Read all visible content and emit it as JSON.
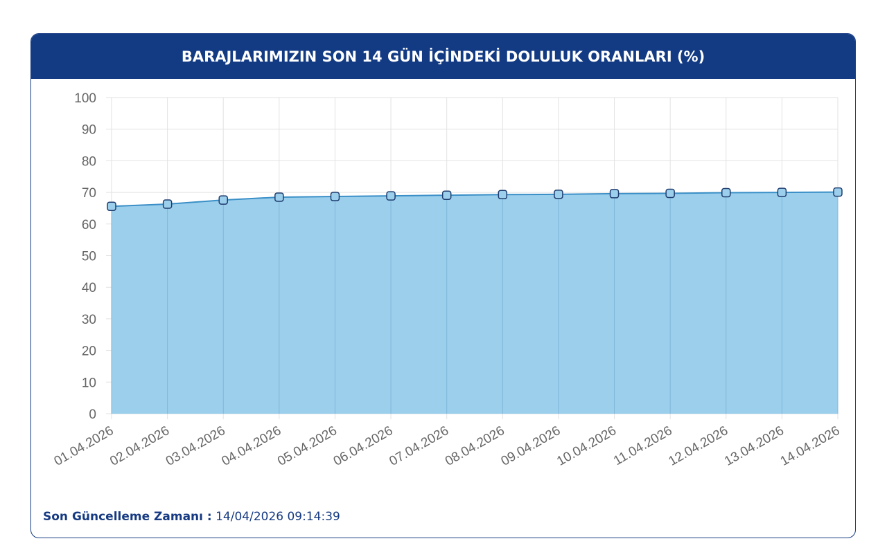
{
  "chart_data": {
    "type": "area",
    "title": "BARAJLARIMIZIN SON 14 GÜN İÇİNDEKİ DOLULUK ORANLARI (%)",
    "categories": [
      "01.04.2026",
      "02.04.2026",
      "03.04.2026",
      "04.04.2026",
      "05.04.2026",
      "06.04.2026",
      "07.04.2026",
      "08.04.2026",
      "09.04.2026",
      "10.04.2026",
      "11.04.2026",
      "12.04.2026",
      "13.04.2026",
      "14.04.2026"
    ],
    "values": [
      65.6,
      66.3,
      67.6,
      68.5,
      68.7,
      68.9,
      69.1,
      69.3,
      69.4,
      69.6,
      69.7,
      69.9,
      70.0,
      70.1
    ],
    "color": "#3a8fc7",
    "fill_color": "#9ccfec",
    "ylim": [
      0,
      100
    ],
    "yticks": [
      0,
      10,
      20,
      30,
      40,
      50,
      60,
      70,
      80,
      90,
      100
    ],
    "grid": true
  },
  "footer": {
    "label": "Son Güncelleme Zamanı :",
    "value": "14/04/2026 09:14:39"
  }
}
